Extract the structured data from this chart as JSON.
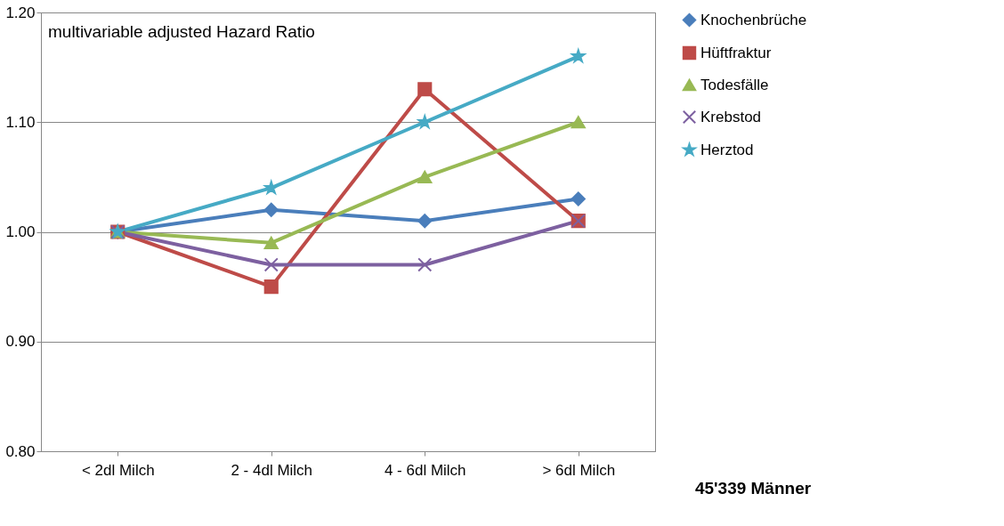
{
  "chart_data": {
    "type": "line",
    "categories": [
      "< 2dl Milch",
      "2 - 4dl Milch",
      "4 - 6dl Milch",
      "> 6dl Milch"
    ],
    "series": [
      {
        "name": "Knochenbrüche",
        "color": "#4a7ebb",
        "marker": "diamond",
        "values": [
          1.0,
          1.02,
          1.01,
          1.03
        ]
      },
      {
        "name": "Hüftfraktur",
        "color": "#be4b48",
        "marker": "square",
        "values": [
          1.0,
          0.95,
          1.13,
          1.01
        ]
      },
      {
        "name": "Todesfälle",
        "color": "#98b954",
        "marker": "triangle",
        "values": [
          1.0,
          0.99,
          1.05,
          1.1
        ]
      },
      {
        "name": "Krebstod",
        "color": "#7d60a0",
        "marker": "cross",
        "values": [
          1.0,
          0.97,
          0.97,
          1.01
        ]
      },
      {
        "name": "Herztod",
        "color": "#46aac5",
        "marker": "star",
        "values": [
          1.0,
          1.04,
          1.1,
          1.16
        ]
      }
    ],
    "ylim": [
      0.8,
      1.2
    ],
    "yticks": [
      {
        "value": 0.8,
        "label": "0.80"
      },
      {
        "value": 0.9,
        "label": "0.90"
      },
      {
        "value": 1.0,
        "label": "1.00"
      },
      {
        "value": 1.1,
        "label": "1.10"
      },
      {
        "value": 1.2,
        "label": "1.20"
      }
    ],
    "grid": "y",
    "legend": "right",
    "annotations": [
      "multivariable adjusted Hazard Ratio",
      "45'339 Männer"
    ]
  }
}
